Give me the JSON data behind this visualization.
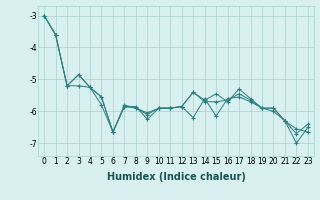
{
  "title": "",
  "xlabel": "Humidex (Indice chaleur)",
  "ylabel": "",
  "x": [
    0,
    1,
    2,
    3,
    4,
    5,
    6,
    7,
    8,
    9,
    10,
    11,
    12,
    13,
    14,
    15,
    16,
    17,
    18,
    19,
    20,
    21,
    22,
    23
  ],
  "line1": [
    -3.0,
    -3.6,
    -5.2,
    -4.85,
    -5.25,
    -5.55,
    -6.65,
    -5.85,
    -5.85,
    -6.25,
    -5.9,
    -5.9,
    -5.85,
    -6.2,
    -5.6,
    -6.15,
    -5.6,
    -5.55,
    -5.7,
    -5.9,
    -5.9,
    -6.3,
    -6.55,
    -6.65
  ],
  "line2": [
    -3.0,
    -3.6,
    -5.2,
    -4.85,
    -5.25,
    -5.55,
    -6.65,
    -5.85,
    -5.9,
    -6.1,
    -5.9,
    -5.9,
    -5.85,
    -5.4,
    -5.65,
    -5.45,
    -5.7,
    -5.3,
    -5.6,
    -5.9,
    -5.9,
    -6.3,
    -6.7,
    -6.4
  ],
  "line3": [
    -3.0,
    -3.6,
    -5.2,
    -5.2,
    -5.25,
    -5.8,
    -6.65,
    -5.8,
    -5.9,
    -6.05,
    -5.9,
    -5.9,
    -5.85,
    -5.4,
    -5.7,
    -5.7,
    -5.65,
    -5.45,
    -5.65,
    -5.9,
    -6.0,
    -6.3,
    -7.0,
    -6.5
  ],
  "line_color": "#2a8080",
  "bg_color": "#d8f0f0",
  "grid_color": "#a8d0d0",
  "ylim": [
    -7.4,
    -2.7
  ],
  "xlim": [
    -0.5,
    23.5
  ],
  "yticks": [
    -7,
    -6,
    -5,
    -4,
    -3
  ],
  "xticks": [
    0,
    1,
    2,
    3,
    4,
    5,
    6,
    7,
    8,
    9,
    10,
    11,
    12,
    13,
    14,
    15,
    16,
    17,
    18,
    19,
    20,
    21,
    22,
    23
  ],
  "tick_fontsize": 5.5,
  "xlabel_fontsize": 7,
  "xlabel_color": "#1a5555"
}
